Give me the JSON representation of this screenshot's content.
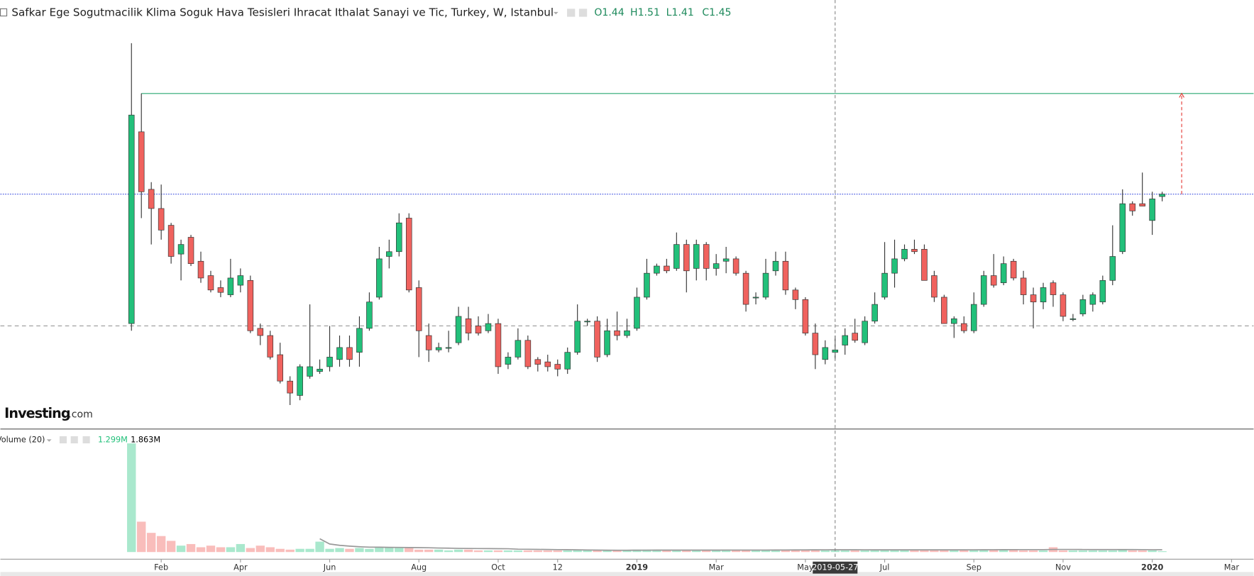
{
  "chart_data": {
    "type": "candlestick",
    "title": "Safkar Ege Sogutmacilik Klima Soguk Hava Tesisleri Ihracat Ithalat Sanayi ve Tic, Turkey, W, Istanbul",
    "ohlc_legend": [
      {
        "value": 1.44,
        "label": "O1.44"
      },
      {
        "value": 1.51,
        "label": "H1.51"
      },
      {
        "value": 1.41,
        "label": "L1.41"
      },
      {
        "value": 1.45,
        "label": "C1.45"
      }
    ],
    "logo": [
      "Investing",
      ".com"
    ],
    "categories": [
      null,
      null,
      null,
      "Feb",
      null,
      null,
      null,
      null,
      null,
      null,
      null,
      "Apr",
      null,
      null,
      null,
      null,
      null,
      null,
      null,
      null,
      "Jun",
      null,
      null,
      null,
      null,
      null,
      null,
      null,
      null,
      "Aug",
      null,
      null,
      null,
      null,
      null,
      null,
      null,
      "Oct",
      null,
      null,
      null,
      null,
      null,
      "12",
      null,
      null,
      null,
      null,
      null,
      null,
      null,
      "2019",
      null,
      null,
      null,
      null,
      null,
      null,
      null,
      "Mar",
      null,
      null,
      null,
      null,
      null,
      null,
      null,
      null,
      "May",
      null,
      null,
      "2019-05-27",
      null,
      null,
      null,
      null,
      "Jul",
      null,
      null,
      null,
      null,
      null,
      null,
      null,
      null,
      "Sep",
      null,
      null,
      null,
      null,
      null,
      null,
      null,
      null,
      "Nov",
      null,
      null,
      null,
      null,
      null,
      null,
      null,
      null,
      "2020",
      null,
      null,
      null,
      null,
      null,
      null,
      null,
      "Mar",
      null
    ],
    "open": [
      1.56,
      2.36,
      2.12,
      2.04,
      1.97,
      1.85,
      1.92,
      1.82,
      1.76,
      1.71,
      1.68,
      1.72,
      1.74,
      1.54,
      1.51,
      1.43,
      1.32,
      1.26,
      1.34,
      1.36,
      1.38,
      1.41,
      1.46,
      1.44,
      1.54,
      1.67,
      1.84,
      1.86,
      2.0,
      1.71,
      1.51,
      1.45,
      1.46,
      1.48,
      1.58,
      1.55,
      1.53,
      1.56,
      1.39,
      1.42,
      1.49,
      1.41,
      1.4,
      1.39,
      1.37,
      1.44,
      1.57,
      1.57,
      1.43,
      1.53,
      1.51,
      1.54,
      1.67,
      1.77,
      1.8,
      1.79,
      1.89,
      1.79,
      1.89,
      1.79,
      1.82,
      1.83,
      1.77,
      1.67,
      1.67,
      1.78,
      1.82,
      1.7,
      1.66,
      1.52,
      1.41,
      1.44,
      1.47,
      1.52,
      1.48,
      1.57,
      1.67,
      1.77,
      1.83,
      1.87,
      1.87,
      1.76,
      1.67,
      1.56,
      1.56,
      1.53,
      1.64,
      1.76,
      1.73,
      1.82,
      1.75,
      1.68,
      1.65,
      1.73,
      1.68,
      1.58,
      1.6,
      1.64,
      1.65,
      1.74,
      1.86,
      2.06,
      2.06,
      1.99,
      2.09,
      null,
      null,
      null,
      null,
      null,
      null,
      null,
      null
    ],
    "high": [
      2.73,
      2.52,
      2.15,
      2.14,
      1.98,
      1.91,
      1.93,
      1.86,
      1.78,
      1.74,
      1.83,
      1.79,
      1.76,
      1.56,
      1.53,
      1.48,
      1.34,
      1.39,
      1.64,
      1.41,
      1.55,
      1.51,
      1.51,
      1.59,
      1.69,
      1.88,
      1.91,
      2.02,
      2.02,
      1.74,
      1.56,
      1.48,
      1.53,
      1.63,
      1.63,
      1.59,
      1.6,
      1.58,
      1.44,
      1.54,
      1.51,
      1.42,
      1.43,
      1.41,
      1.46,
      1.64,
      1.58,
      1.59,
      1.58,
      1.61,
      1.58,
      1.71,
      1.83,
      1.81,
      1.83,
      1.94,
      1.91,
      1.91,
      1.9,
      1.85,
      1.88,
      1.84,
      1.78,
      1.69,
      1.83,
      1.86,
      1.86,
      1.71,
      1.67,
      1.56,
      1.49,
      1.51,
      1.54,
      1.58,
      1.59,
      1.69,
      1.9,
      1.91,
      1.89,
      1.91,
      1.89,
      1.78,
      1.68,
      1.59,
      1.59,
      1.69,
      1.78,
      1.85,
      1.84,
      1.83,
      1.78,
      1.71,
      1.73,
      1.74,
      1.69,
      1.6,
      1.68,
      1.69,
      1.76,
      1.97,
      2.12,
      2.07,
      2.19,
      2.11,
      2.11,
      null,
      null,
      null,
      null,
      null,
      null,
      null,
      null
    ],
    "low": [
      1.53,
      2.0,
      1.89,
      1.91,
      1.81,
      1.74,
      1.8,
      1.73,
      1.69,
      1.67,
      1.67,
      1.69,
      1.52,
      1.47,
      1.41,
      1.31,
      1.22,
      1.24,
      1.33,
      1.35,
      1.36,
      1.38,
      1.38,
      1.38,
      1.53,
      1.66,
      1.79,
      1.84,
      1.69,
      1.42,
      1.4,
      1.44,
      1.44,
      1.47,
      1.49,
      1.51,
      1.52,
      1.35,
      1.37,
      1.41,
      1.37,
      1.36,
      1.36,
      1.34,
      1.35,
      1.43,
      1.55,
      1.4,
      1.42,
      1.49,
      1.5,
      1.53,
      1.66,
      1.76,
      1.77,
      1.78,
      1.69,
      1.74,
      1.74,
      1.76,
      1.77,
      1.76,
      1.61,
      1.64,
      1.66,
      1.76,
      1.68,
      1.62,
      1.51,
      1.37,
      1.39,
      1.41,
      1.43,
      1.48,
      1.47,
      1.56,
      1.66,
      1.71,
      1.82,
      1.85,
      1.74,
      1.65,
      1.56,
      1.5,
      1.52,
      1.52,
      1.63,
      1.71,
      1.72,
      1.74,
      1.64,
      1.54,
      1.62,
      1.63,
      1.57,
      1.57,
      1.59,
      1.61,
      1.64,
      1.72,
      1.85,
      2.01,
      2.05,
      1.93,
      2.07,
      null,
      null,
      null,
      null,
      null,
      null,
      null,
      null
    ],
    "close": [
      2.43,
      2.11,
      2.04,
      1.95,
      1.84,
      1.89,
      1.81,
      1.75,
      1.7,
      1.69,
      1.75,
      1.76,
      1.53,
      1.51,
      1.42,
      1.32,
      1.27,
      1.38,
      1.38,
      1.37,
      1.42,
      1.46,
      1.41,
      1.54,
      1.65,
      1.83,
      1.86,
      1.98,
      1.7,
      1.53,
      1.45,
      1.46,
      1.46,
      1.59,
      1.52,
      1.52,
      1.56,
      1.38,
      1.42,
      1.49,
      1.38,
      1.39,
      1.38,
      1.37,
      1.44,
      1.57,
      1.57,
      1.42,
      1.53,
      1.51,
      1.53,
      1.67,
      1.77,
      1.8,
      1.78,
      1.89,
      1.78,
      1.89,
      1.79,
      1.81,
      1.83,
      1.77,
      1.64,
      1.67,
      1.77,
      1.82,
      1.7,
      1.66,
      1.52,
      1.43,
      1.46,
      1.45,
      1.51,
      1.49,
      1.57,
      1.64,
      1.77,
      1.83,
      1.87,
      1.86,
      1.74,
      1.67,
      1.56,
      1.58,
      1.53,
      1.64,
      1.76,
      1.72,
      1.81,
      1.75,
      1.68,
      1.65,
      1.71,
      1.68,
      1.59,
      1.58,
      1.66,
      1.68,
      1.74,
      1.84,
      2.06,
      2.03,
      2.05,
      2.08,
      2.1,
      null,
      null,
      null,
      null,
      null,
      null,
      null,
      null
    ],
    "ylim": [
      1.12,
      2.91
    ],
    "up_color": "#22c07a",
    "down_color": "#f0625e",
    "levels": [
      {
        "value": 2.52,
        "color": "#2aa873",
        "style": "solid"
      },
      {
        "value": 2.1,
        "color": "#3d4fe0",
        "style": "dotted"
      },
      {
        "value": 1.55,
        "color": "#999999",
        "style": "dashed"
      }
    ],
    "arrow": {
      "from": 2.1,
      "to": 2.52,
      "color": "#e53935"
    },
    "volume": {
      "title": "Volume (20)",
      "legend": [
        {
          "value": 1.299,
          "label": "1.299M",
          "color": "#22c07a"
        },
        {
          "value": 1.863,
          "label": "1.863M",
          "color": "#000000"
        }
      ],
      "values": [
        88.4,
        24.7,
        15.6,
        13,
        9.1,
        5.2,
        6.5,
        3.9,
        5.2,
        3.9,
        3.9,
        6.5,
        3.25,
        5.2,
        3.9,
        2.6,
        1.95,
        2.6,
        2.6,
        8.45,
        2.6,
        3.25,
        2.6,
        3.25,
        2.6,
        3.9,
        3.9,
        3.25,
        3.25,
        1.95,
        1.95,
        1.95,
        1.3,
        1.95,
        1.95,
        1.3,
        1.3,
        1.3,
        1.3,
        1.3,
        1.3,
        1.3,
        1.3,
        1.3,
        1.3,
        1.95,
        1.3,
        1.3,
        1.3,
        1.3,
        1.3,
        1.95,
        1.95,
        1.95,
        1.3,
        1.3,
        1.3,
        1.3,
        1.3,
        1.3,
        1.95,
        1.3,
        1.3,
        1.3,
        1.3,
        1.3,
        1.3,
        1.3,
        1.3,
        1.3,
        1.3,
        1.299,
        1.3,
        1.3,
        1.3,
        1.3,
        1.95,
        1.95,
        1.3,
        1.3,
        1.3,
        1.3,
        1.3,
        1.3,
        1.3,
        1.95,
        1.95,
        1.95,
        1.95,
        1.95,
        1.3,
        1.3,
        1.3,
        3.9,
        1.3,
        1.3,
        1.3,
        1.3,
        1.3,
        1.3,
        1.95,
        1.3,
        1.3,
        1.3,
        0.65,
        null,
        null,
        null,
        null,
        null,
        null,
        null,
        null
      ],
      "ma": [
        null,
        null,
        null,
        null,
        null,
        null,
        null,
        null,
        null,
        null,
        null,
        null,
        null,
        null,
        null,
        null,
        null,
        null,
        null,
        10.8,
        6.53,
        5.46,
        4.81,
        4.32,
        4.0,
        3.93,
        3.8,
        3.77,
        3.67,
        3.58,
        3.48,
        3.25,
        3.15,
        2.99,
        2.89,
        2.83,
        2.8,
        2.73,
        2.67,
        2.31,
        2.24,
        2.15,
        2.08,
        1.98,
        1.92,
        1.82,
        1.69,
        1.59,
        1.5,
        1.46,
        1.46,
        1.5,
        1.53,
        1.56,
        1.56,
        1.56,
        1.56,
        1.56,
        1.56,
        1.56,
        1.6,
        1.6,
        1.6,
        1.6,
        1.6,
        1.63,
        1.66,
        1.7,
        1.75,
        1.8,
        1.83,
        1.863,
        1.85,
        1.85,
        1.83,
        1.8,
        1.8,
        1.8,
        1.8,
        1.8,
        1.8,
        1.8,
        1.8,
        1.8,
        1.8,
        1.83,
        1.86,
        1.9,
        1.93,
        1.96,
        1.96,
        1.96,
        1.96,
        2.1,
        2.1,
        2.1,
        2.05,
        2.0,
        2.0,
        2.0,
        2.0,
        2.0,
        1.95,
        1.9,
        1.85,
        null,
        null,
        null,
        null,
        null,
        null,
        null,
        null
      ],
      "ma_color": "#999999",
      "ylim": [
        0,
        88.4
      ],
      "up_color": "#a9e8cd",
      "down_color": "#f9bdbb"
    }
  }
}
